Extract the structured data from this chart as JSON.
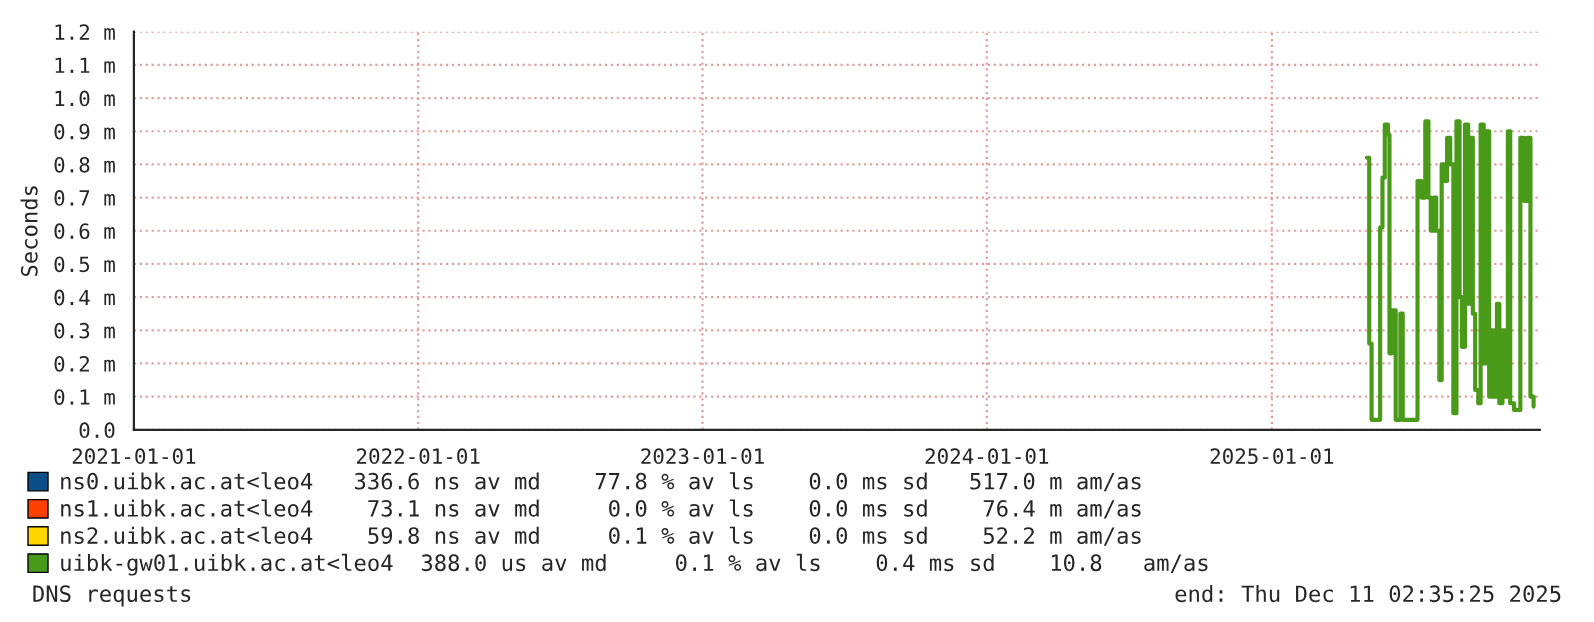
{
  "chart_data": {
    "type": "step",
    "ylabel": "Seconds",
    "xlim": [
      "2021-01-01",
      "2025-12-11"
    ],
    "xticks": [
      "2021-01-01",
      "2022-01-01",
      "2023-01-01",
      "2024-01-01",
      "2025-01-01"
    ],
    "ylim": [
      0,
      1.2
    ],
    "yticks": [
      {
        "value": 0,
        "label": "0.0"
      },
      {
        "value": 0.1,
        "label": "0.1 m"
      },
      {
        "value": 0.2,
        "label": "0.2 m"
      },
      {
        "value": 0.3,
        "label": "0.3 m"
      },
      {
        "value": 0.4,
        "label": "0.4 m"
      },
      {
        "value": 0.5,
        "label": "0.5 m"
      },
      {
        "value": 0.6,
        "label": "0.6 m"
      },
      {
        "value": 0.7,
        "label": "0.7 m"
      },
      {
        "value": 0.8,
        "label": "0.8 m"
      },
      {
        "value": 0.9,
        "label": "0.9 m"
      },
      {
        "value": 1.0,
        "label": "1.0 m"
      },
      {
        "value": 1.1,
        "label": "1.1 m"
      },
      {
        "value": 1.2,
        "label": "1.2 m"
      }
    ],
    "grid": true,
    "legend": "bottom",
    "x": [
      "2025-05-03",
      "2025-05-06",
      "2025-05-09",
      "2025-05-15",
      "2025-05-20",
      "2025-05-23",
      "2025-05-26",
      "2025-05-30",
      "2025-06-01",
      "2025-06-04",
      "2025-06-09",
      "2025-06-15",
      "2025-06-18",
      "2025-06-23",
      "2025-06-30",
      "2025-07-04",
      "2025-07-07",
      "2025-07-12",
      "2025-07-17",
      "2025-07-21",
      "2025-07-24",
      "2025-07-28",
      "2025-07-31",
      "2025-08-04",
      "2025-08-07",
      "2025-08-11",
      "2025-08-14",
      "2025-08-18",
      "2025-08-22",
      "2025-08-26",
      "2025-08-30",
      "2025-09-02",
      "2025-09-06",
      "2025-09-10",
      "2025-09-12",
      "2025-09-16",
      "2025-09-19",
      "2025-09-23",
      "2025-09-26",
      "2025-09-30",
      "2025-10-03",
      "2025-10-07",
      "2025-10-10",
      "2025-10-13",
      "2025-10-17",
      "2025-10-20",
      "2025-10-24",
      "2025-10-27",
      "2025-10-31",
      "2025-11-03",
      "2025-11-08",
      "2025-11-12",
      "2025-11-16",
      "2025-11-21",
      "2025-11-25",
      "2025-11-29",
      "2025-12-03"
    ],
    "series": [
      {
        "name": "ns0.uibk.ac.at<leo4   336.6 ns av md    77.8 % av ls    0.0 ms sd   517.0 m am/as",
        "color": "#0b4f8a",
        "values": [
          null,
          null,
          null,
          null,
          null,
          null,
          null,
          null,
          null,
          null,
          null,
          null,
          null,
          null,
          null,
          null,
          null,
          null,
          null,
          null,
          null,
          null,
          null,
          null,
          null,
          null,
          null,
          null,
          null,
          null,
          null,
          null,
          null,
          null,
          null,
          null,
          null,
          null,
          null,
          null,
          null,
          null,
          null,
          null,
          null,
          null,
          null,
          null,
          null,
          null,
          null,
          null,
          null,
          null,
          null,
          null,
          null
        ]
      },
      {
        "name": "ns1.uibk.ac.at<leo4    73.1 ns av md     0.0 % av ls    0.0 ms sd    76.4 m am/as",
        "color": "#ff4000",
        "values": [
          null,
          null,
          null,
          null,
          null,
          null,
          null,
          null,
          null,
          null,
          null,
          null,
          null,
          null,
          null,
          null,
          null,
          null,
          null,
          null,
          null,
          null,
          null,
          null,
          null,
          null,
          null,
          null,
          null,
          null,
          null,
          null,
          null,
          null,
          null,
          null,
          null,
          null,
          null,
          null,
          null,
          null,
          null,
          null,
          null,
          null,
          null,
          null,
          null,
          null,
          null,
          null,
          null,
          null,
          null,
          null,
          null
        ]
      },
      {
        "name": "ns2.uibk.ac.at<leo4    59.8 ns av md     0.1 % av ls    0.0 ms sd    52.2 m am/as",
        "color": "#ffd700",
        "values": [
          null,
          null,
          null,
          null,
          null,
          null,
          null,
          null,
          null,
          null,
          null,
          null,
          null,
          null,
          null,
          null,
          null,
          null,
          null,
          null,
          null,
          null,
          null,
          null,
          null,
          null,
          null,
          null,
          null,
          null,
          null,
          null,
          null,
          null,
          null,
          null,
          null,
          null,
          null,
          null,
          null,
          null,
          null,
          null,
          null,
          null,
          null,
          null,
          null,
          null,
          null,
          null,
          null,
          null,
          null,
          null,
          null
        ]
      },
      {
        "name": "uibk-gw01.uibk.ac.at<leo4  388.0 us av md     0.1 % av ls    0.4 ms sd    10.8   am/as",
        "color": "#4a9a1a",
        "values": [
          0.82,
          0.26,
          0.03,
          0.03,
          0.61,
          0.76,
          0.92,
          0.89,
          0.23,
          0.36,
          0.03,
          0.35,
          0.03,
          0.03,
          0.03,
          0.03,
          0.75,
          0.7,
          0.93,
          0.7,
          0.6,
          0.7,
          0.6,
          0.15,
          0.8,
          0.75,
          0.88,
          0.8,
          0.05,
          0.93,
          0.4,
          0.25,
          0.92,
          0.38,
          0.88,
          0.35,
          0.12,
          0.08,
          0.92,
          0.2,
          0.9,
          0.1,
          0.3,
          0.1,
          0.38,
          0.08,
          0.3,
          0.1,
          0.9,
          0.08,
          0.06,
          0.06,
          0.88,
          0.69,
          0.88,
          0.1,
          0.07
        ]
      }
    ],
    "annotations": [
      "DNS requests",
      "end: Thu Dec 11 02:35:25 2025"
    ]
  }
}
